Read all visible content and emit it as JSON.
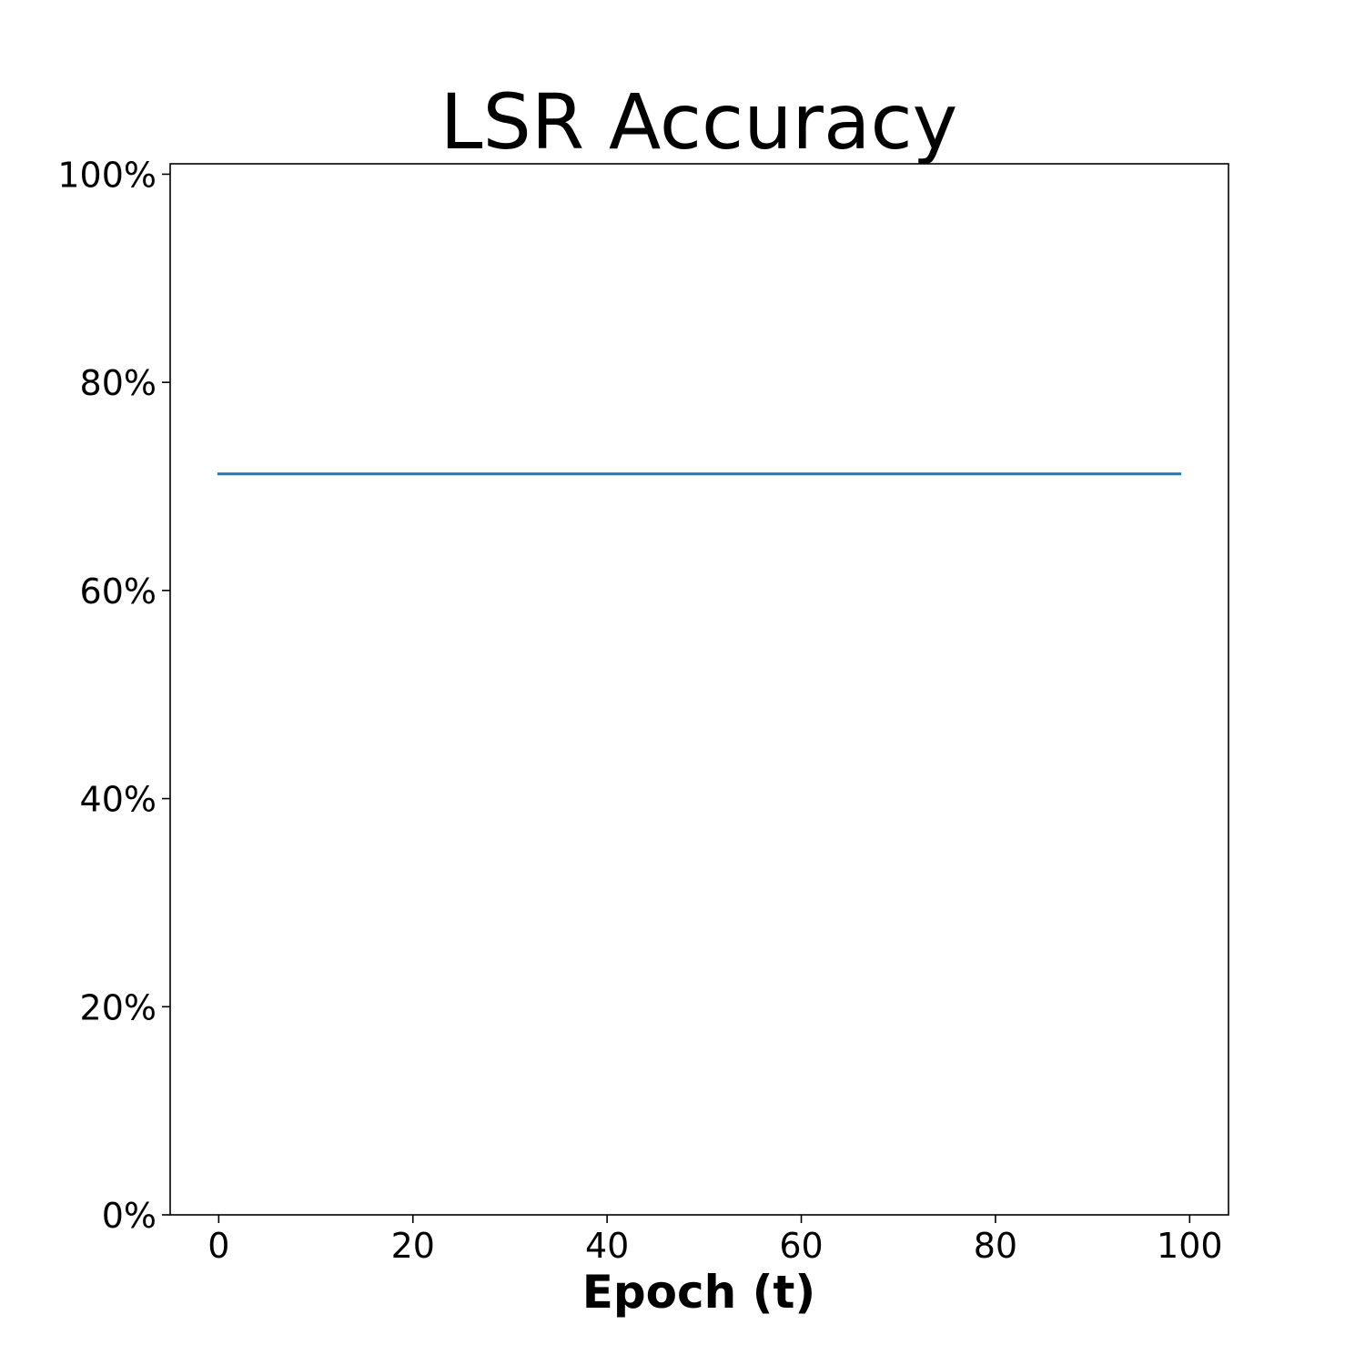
{
  "chart_data": {
    "type": "line",
    "title": "LSR Accuracy",
    "xlabel": "Epoch (t)",
    "ylabel": "",
    "xlim": [
      -5,
      104
    ],
    "ylim": [
      0,
      1.01
    ],
    "xticks": [
      0,
      20,
      40,
      60,
      80,
      100
    ],
    "xtick_labels": [
      "0",
      "20",
      "40",
      "60",
      "80",
      "100"
    ],
    "yticks": [
      0,
      0.2,
      0.4,
      0.6,
      0.8,
      1.0
    ],
    "ytick_labels": [
      "0%",
      "20%",
      "40%",
      "60%",
      "80%",
      "100%"
    ],
    "grid": false,
    "legend": "none",
    "series": [
      {
        "color": "#1f77b4",
        "x": [
          0,
          99
        ],
        "y": [
          0.712,
          0.712
        ]
      }
    ]
  }
}
